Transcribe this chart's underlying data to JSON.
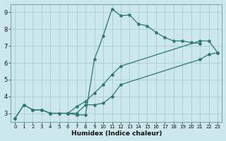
{
  "xlabel": "Humidex (Indice chaleur)",
  "bg_color": "#cce8ec",
  "grid_color": "#aacccc",
  "line_color": "#2a7a6a",
  "xlim": [
    -0.5,
    23.5
  ],
  "ylim": [
    2.5,
    9.5
  ],
  "xticks": [
    0,
    1,
    2,
    3,
    4,
    5,
    6,
    7,
    8,
    9,
    10,
    11,
    12,
    13,
    14,
    15,
    16,
    17,
    18,
    19,
    20,
    21,
    22,
    23
  ],
  "yticks": [
    3,
    4,
    5,
    6,
    7,
    8,
    9
  ],
  "curve1_x": [
    0,
    1,
    2,
    3,
    4,
    5,
    6,
    7,
    8,
    9,
    10,
    11,
    12,
    13,
    14,
    15,
    16,
    17,
    18,
    19,
    20,
    21
  ],
  "curve1_y": [
    2.7,
    3.5,
    3.2,
    3.2,
    3.0,
    3.0,
    3.0,
    2.9,
    2.9,
    6.2,
    7.6,
    9.2,
    8.8,
    8.85,
    8.3,
    8.2,
    7.8,
    7.5,
    7.3,
    7.3,
    7.2,
    7.15
  ],
  "curve2_x": [
    0,
    1,
    2,
    3,
    4,
    5,
    6,
    7,
    8,
    9,
    10,
    11,
    12,
    21,
    22,
    23
  ],
  "curve2_y": [
    2.7,
    3.5,
    3.2,
    3.2,
    3.0,
    3.0,
    3.0,
    3.0,
    3.5,
    3.5,
    3.6,
    4.0,
    4.7,
    6.2,
    6.5,
    6.6
  ],
  "curve3_x": [
    6,
    7,
    8,
    9,
    10,
    11,
    12,
    21,
    22,
    23
  ],
  "curve3_y": [
    3.0,
    3.4,
    3.7,
    4.2,
    4.7,
    5.3,
    5.8,
    7.3,
    7.3,
    6.6
  ]
}
